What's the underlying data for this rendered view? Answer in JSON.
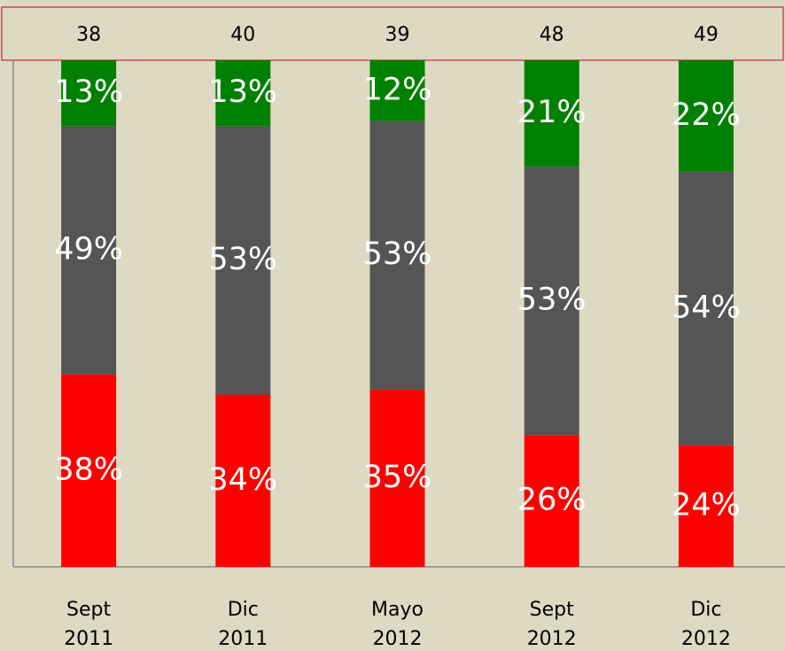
{
  "chart_data": {
    "type": "stacked-bar",
    "categories": [
      [
        "Sept",
        "2011"
      ],
      [
        "Dic",
        "2011"
      ],
      [
        "Mayo",
        "2012"
      ],
      [
        "Sept",
        "2012"
      ],
      [
        "Dic",
        "2012"
      ]
    ],
    "top_labels": [
      38,
      40,
      39,
      48,
      49
    ],
    "ylim": [
      0,
      100
    ],
    "series": [
      {
        "color": "#ff0000",
        "values": [
          38,
          34,
          35,
          26,
          24
        ],
        "value_labels": [
          "38%",
          "34%",
          "35%",
          "26%",
          "24%"
        ]
      },
      {
        "color": "#555555",
        "values": [
          49,
          53,
          53,
          53,
          54
        ],
        "value_labels": [
          "49%",
          "53%",
          "53%",
          "53%",
          "54%"
        ]
      },
      {
        "color": "#008000",
        "values": [
          13,
          13,
          12,
          21,
          22
        ],
        "value_labels": [
          "13%",
          "13%",
          "12%",
          "21%",
          "22%"
        ]
      }
    ]
  }
}
